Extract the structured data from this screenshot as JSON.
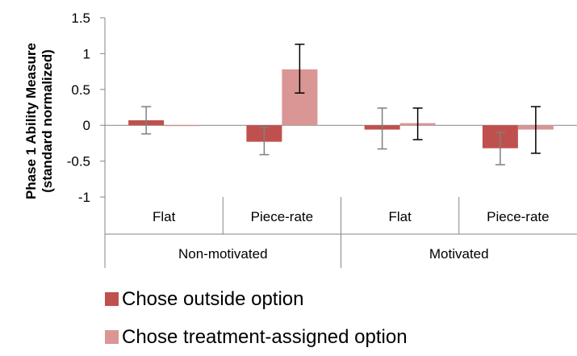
{
  "chart_data": {
    "type": "bar",
    "ylabel_line1": "Phase 1  Ability Measure",
    "ylabel_line2": "(standard normalized)",
    "ylim": [
      -1,
      1.5
    ],
    "yticks": [
      "1.5",
      "1",
      "0.5",
      "0",
      "-0.5",
      "-1"
    ],
    "ytick_values": [
      1.5,
      1,
      0.5,
      0,
      -0.5,
      -1
    ],
    "grid": false,
    "legend_position": "bottom",
    "groups": [
      {
        "label": "Non-motivated",
        "categories": [
          "Flat",
          "Piece-rate"
        ]
      },
      {
        "label": "Motivated",
        "categories": [
          "Flat",
          "Piece-rate"
        ]
      }
    ],
    "categories": [
      "Flat",
      "Piece-rate",
      "Flat",
      "Piece-rate"
    ],
    "series": [
      {
        "name": "Chose outside option",
        "color": "#c0504d",
        "values": [
          0.07,
          -0.23,
          -0.06,
          -0.32
        ],
        "err_low": [
          -0.12,
          -0.41,
          -0.33,
          -0.55
        ],
        "err_high": [
          0.26,
          -0.03,
          0.24,
          -0.1
        ]
      },
      {
        "name": "Chose treatment-assigned option",
        "color": "#d99694",
        "values": [
          -0.01,
          0.78,
          0.03,
          -0.06
        ],
        "err_low": [
          null,
          0.45,
          -0.2,
          -0.39
        ],
        "err_high": [
          null,
          1.13,
          0.24,
          0.26
        ]
      }
    ]
  }
}
